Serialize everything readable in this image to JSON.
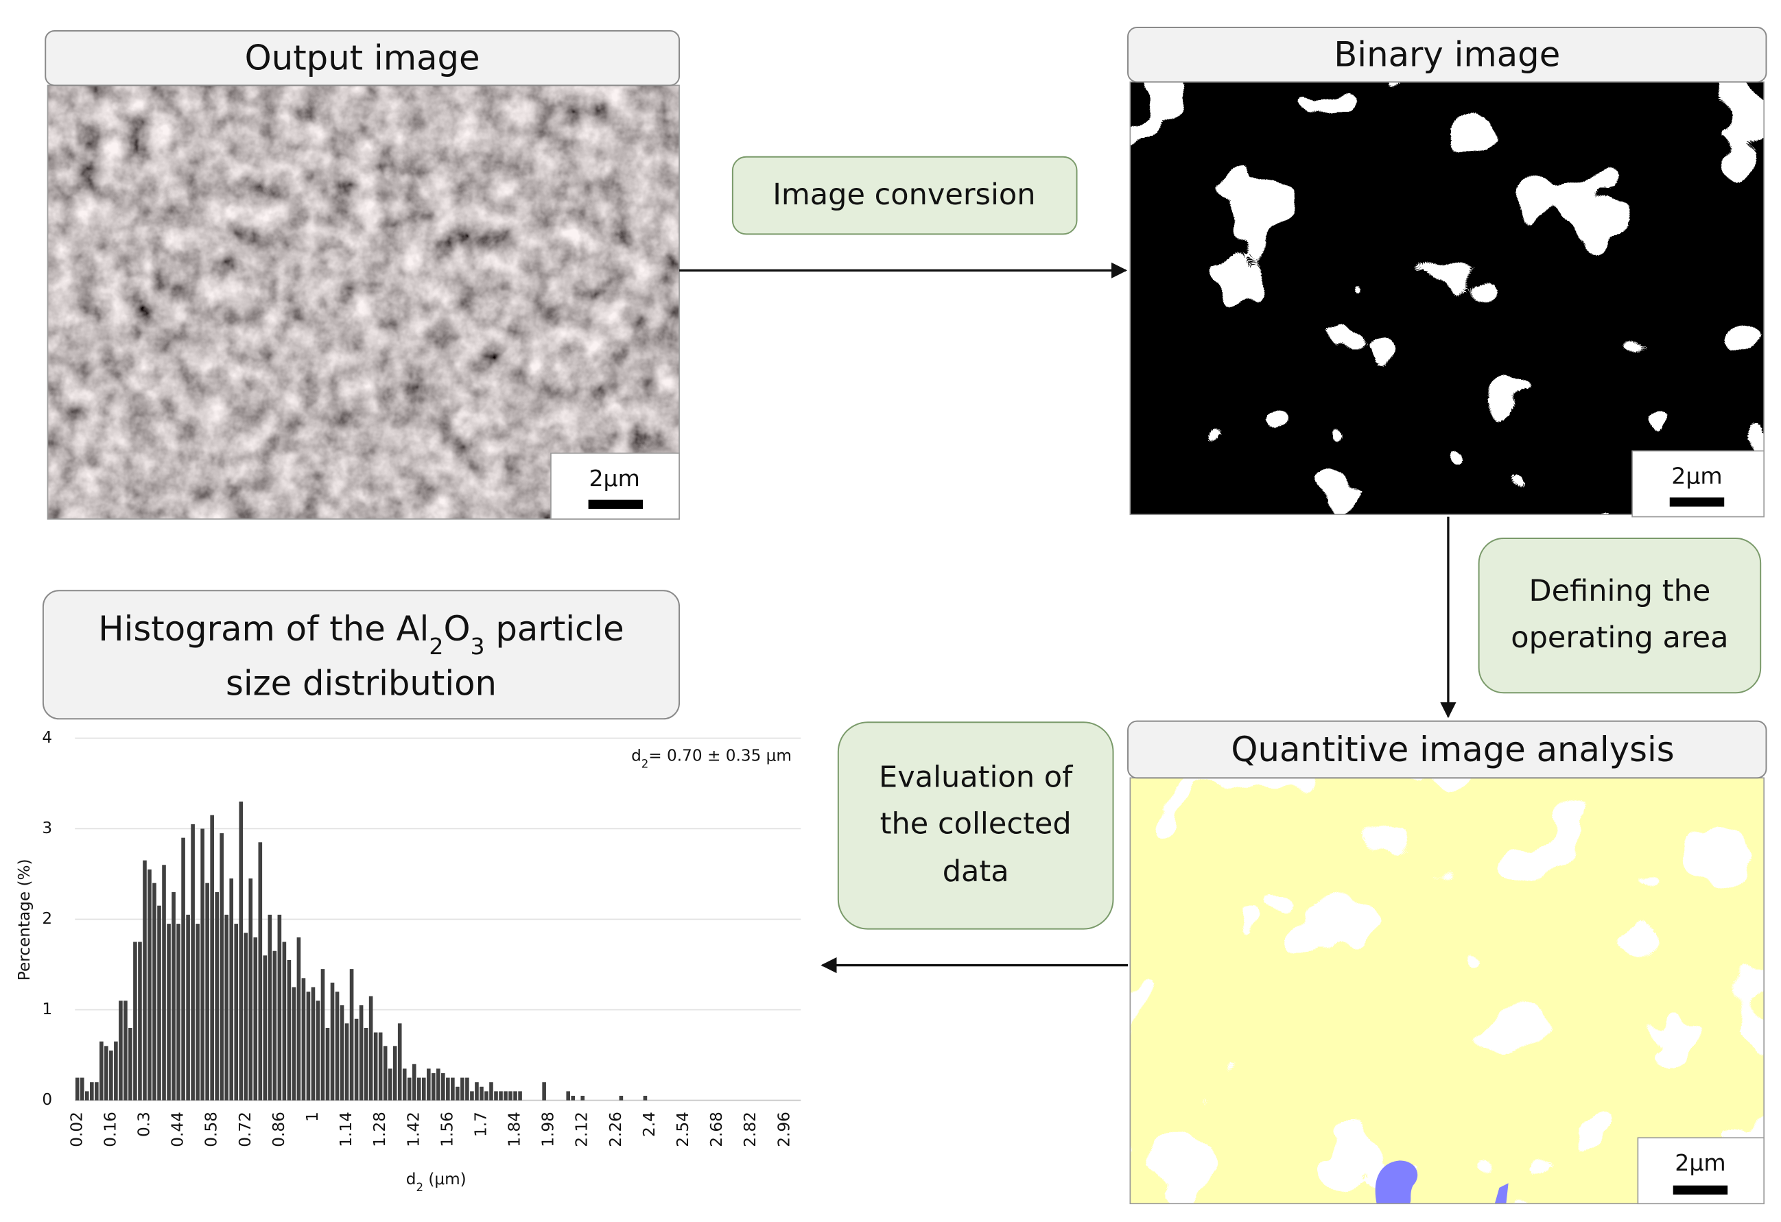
{
  "panels": {
    "output": {
      "title": "Output image",
      "scale": "2μm"
    },
    "binary": {
      "title": "Binary image",
      "scale": "2μm"
    },
    "analysis": {
      "title": "Quantitive image analysis",
      "scale": "2μm"
    }
  },
  "steps": {
    "conversion": [
      "Image conversion"
    ],
    "area": [
      "Defining the",
      "operating area"
    ],
    "evaluation": [
      "Evaluation of",
      "the collected",
      "data"
    ]
  },
  "histogram_title": {
    "line1": [
      "Histogram of the Al",
      "2",
      "O",
      "3",
      " particle"
    ],
    "line2": "size distribution"
  },
  "chart_data": {
    "type": "bar",
    "annotation": [
      "d",
      "2",
      "= 0.70 ± 0.35 μm"
    ],
    "y_label": "Percentage (%)",
    "x_label": [
      "d",
      "2",
      " (μm)"
    ],
    "color": "#404040",
    "grid": true,
    "ylim": [
      0,
      4
    ],
    "yticks": [
      0,
      1,
      2,
      3,
      4
    ],
    "xlim": [
      0.01,
      2.97
    ],
    "xticks": [
      0.02,
      0.16,
      0.3,
      0.44,
      0.58,
      0.72,
      0.86,
      1,
      1.14,
      1.28,
      1.42,
      1.56,
      1.7,
      1.84,
      1.98,
      2.12,
      2.26,
      2.4,
      2.54,
      2.68,
      2.82,
      2.96
    ],
    "x": [
      0.02,
      0.04,
      0.06,
      0.08,
      0.1,
      0.12,
      0.14,
      0.16,
      0.18,
      0.2,
      0.22,
      0.24,
      0.26,
      0.28,
      0.3,
      0.32,
      0.34,
      0.36,
      0.38,
      0.4,
      0.42,
      0.44,
      0.46,
      0.48,
      0.5,
      0.52,
      0.54,
      0.56,
      0.58,
      0.6,
      0.62,
      0.64,
      0.66,
      0.68,
      0.7,
      0.72,
      0.74,
      0.76,
      0.78,
      0.8,
      0.82,
      0.84,
      0.86,
      0.88,
      0.9,
      0.92,
      0.94,
      0.96,
      0.98,
      1.0,
      1.02,
      1.04,
      1.06,
      1.08,
      1.1,
      1.12,
      1.14,
      1.16,
      1.18,
      1.2,
      1.22,
      1.24,
      1.26,
      1.28,
      1.3,
      1.32,
      1.34,
      1.36,
      1.38,
      1.4,
      1.42,
      1.44,
      1.46,
      1.48,
      1.5,
      1.52,
      1.54,
      1.56,
      1.58,
      1.6,
      1.62,
      1.64,
      1.66,
      1.68,
      1.7,
      1.72,
      1.74,
      1.76,
      1.78,
      1.8,
      1.82,
      1.84,
      1.86,
      1.96,
      2.06,
      2.08,
      2.12,
      2.28,
      2.38
    ],
    "values": [
      0.25,
      0.25,
      0.1,
      0.2,
      0.2,
      0.65,
      0.6,
      0.55,
      0.65,
      1.1,
      1.1,
      0.8,
      1.75,
      1.75,
      2.65,
      2.55,
      2.4,
      2.15,
      2.6,
      1.95,
      2.3,
      1.95,
      2.9,
      2.05,
      3.05,
      1.95,
      3.0,
      2.4,
      3.15,
      2.3,
      2.95,
      2.05,
      2.45,
      1.95,
      3.3,
      1.85,
      2.45,
      1.8,
      2.85,
      1.6,
      2.05,
      1.65,
      2.05,
      1.75,
      1.55,
      1.25,
      1.8,
      1.35,
      1.2,
      1.25,
      1.1,
      1.45,
      0.8,
      1.3,
      1.2,
      1.05,
      0.85,
      1.45,
      0.9,
      1.05,
      0.8,
      1.15,
      0.75,
      0.75,
      0.6,
      0.35,
      0.6,
      0.85,
      0.35,
      0.25,
      0.4,
      0.25,
      0.25,
      0.35,
      0.3,
      0.35,
      0.3,
      0.25,
      0.25,
      0.15,
      0.25,
      0.25,
      0.1,
      0.2,
      0.15,
      0.1,
      0.2,
      0.1,
      0.1,
      0.1,
      0.1,
      0.1,
      0.1,
      0.2,
      0.1,
      0.05,
      0.05,
      0.05,
      0.05
    ]
  }
}
